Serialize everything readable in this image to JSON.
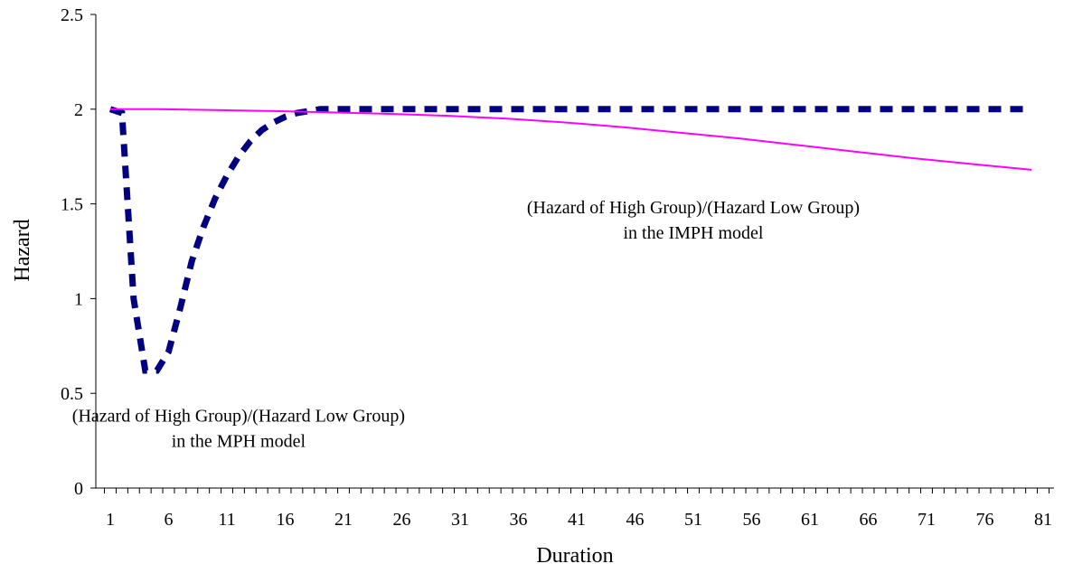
{
  "chart_data": {
    "type": "line",
    "xlabel": "Duration",
    "ylabel": "Hazard",
    "ylim": [
      0,
      2.5
    ],
    "xlim": [
      1,
      81
    ],
    "x_tick_labels": [
      "1",
      "6",
      "11",
      "16",
      "21",
      "26",
      "31",
      "36",
      "41",
      "46",
      "51",
      "56",
      "61",
      "66",
      "71",
      "76",
      "81"
    ],
    "y_tick_labels": [
      "0",
      "0.5",
      "1",
      "1.5",
      "2",
      "2.5"
    ],
    "grid": false,
    "legend": "none",
    "series": [
      {
        "style": "dotted",
        "color": "#000080",
        "x": [
          1,
          2,
          3,
          4,
          5,
          6,
          7,
          8,
          9,
          10,
          11,
          12,
          13,
          14,
          15,
          16,
          17,
          18,
          19,
          20,
          21,
          25,
          30,
          35,
          40,
          45,
          50,
          55,
          60,
          65,
          70,
          75,
          80
        ],
        "values": [
          2.0,
          1.98,
          1.0,
          0.62,
          0.62,
          0.72,
          0.95,
          1.2,
          1.38,
          1.53,
          1.65,
          1.75,
          1.83,
          1.89,
          1.93,
          1.96,
          1.98,
          1.99,
          2.0,
          2.0,
          2.0,
          2.0,
          2.0,
          2.0,
          2.0,
          2.0,
          2.0,
          2.0,
          2.0,
          2.0,
          2.0,
          2.0,
          2.0
        ]
      },
      {
        "style": "solid",
        "color": "#ff00ff",
        "x": [
          1,
          5,
          10,
          15,
          20,
          25,
          30,
          35,
          40,
          45,
          50,
          55,
          60,
          65,
          70,
          75,
          80
        ],
        "values": [
          2.0,
          2.0,
          1.995,
          1.99,
          1.983,
          1.975,
          1.965,
          1.95,
          1.93,
          1.905,
          1.875,
          1.845,
          1.81,
          1.775,
          1.74,
          1.71,
          1.68
        ]
      }
    ],
    "annotations": [
      {
        "lines": [
          "(Hazard of High Group)/(Hazard Low Group)",
          "in the IMPH model"
        ],
        "x": 51,
        "y": 1.45
      },
      {
        "lines": [
          "(Hazard of High Group)/(Hazard Low Group)",
          "in the MPH model"
        ],
        "x": 12,
        "y": 0.35
      }
    ]
  }
}
